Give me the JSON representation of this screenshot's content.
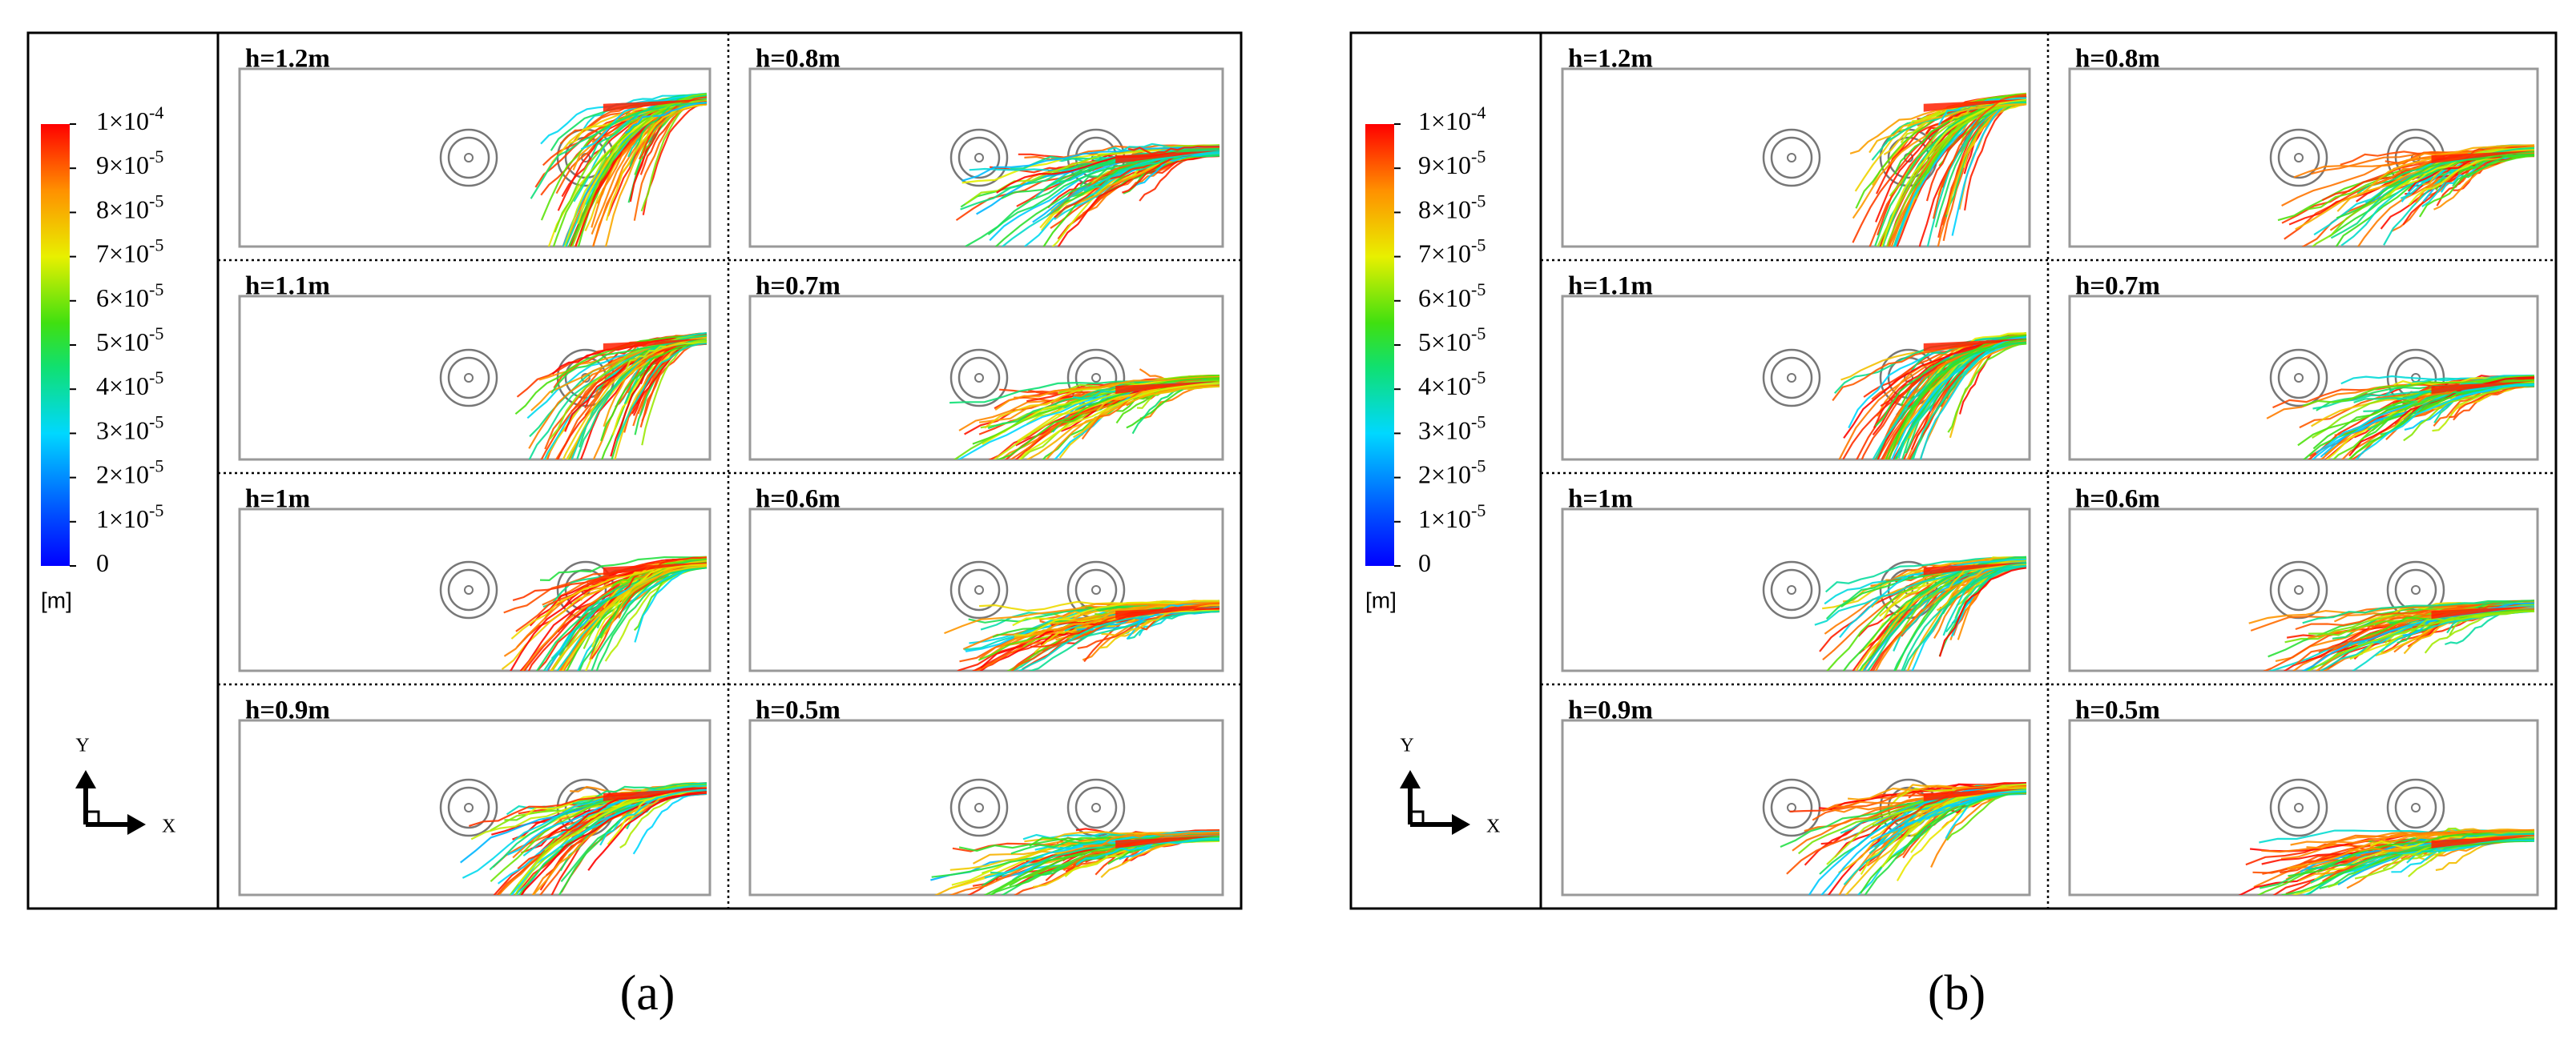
{
  "panels": [
    {
      "caption": "(a)",
      "colorbar": {
        "ticks": [
          {
            "text": "1×10",
            "sup": "-4"
          },
          {
            "text": "9×10",
            "sup": "-5"
          },
          {
            "text": "8×10",
            "sup": "-5"
          },
          {
            "text": "7×10",
            "sup": "-5"
          },
          {
            "text": "6×10",
            "sup": "-5"
          },
          {
            "text": "5×10",
            "sup": "-5"
          },
          {
            "text": "4×10",
            "sup": "-5"
          },
          {
            "text": "3×10",
            "sup": "-5"
          },
          {
            "text": "2×10",
            "sup": "-5"
          },
          {
            "text": "1×10",
            "sup": "-5"
          },
          {
            "text": "0"
          }
        ],
        "unit": "[m]"
      },
      "axes": {
        "y": "Y",
        "x": "X"
      },
      "plots": [
        {
          "label": "h=1.2m"
        },
        {
          "label": "h=1.1m"
        },
        {
          "label": "h=1m"
        },
        {
          "label": "h=0.9m"
        },
        {
          "label": "h=0.8m"
        },
        {
          "label": "h=0.7m"
        },
        {
          "label": "h=0.6m"
        },
        {
          "label": "h=0.5m"
        }
      ]
    },
    {
      "caption": "(b)",
      "colorbar": {
        "ticks": [
          {
            "text": "1×10",
            "sup": "-4"
          },
          {
            "text": "9×10",
            "sup": "-5"
          },
          {
            "text": "8×10",
            "sup": "-5"
          },
          {
            "text": "7×10",
            "sup": "-5"
          },
          {
            "text": "6×10",
            "sup": "-5"
          },
          {
            "text": "5×10",
            "sup": "-5"
          },
          {
            "text": "4×10",
            "sup": "-5"
          },
          {
            "text": "3×10",
            "sup": "-5"
          },
          {
            "text": "2×10",
            "sup": "-5"
          },
          {
            "text": "1×10",
            "sup": "-5"
          },
          {
            "text": "0"
          }
        ],
        "unit": "[m]"
      },
      "axes": {
        "y": "Y",
        "x": "X"
      },
      "plots": [
        {
          "label": "h=1.2m"
        },
        {
          "label": "h=1.1m"
        },
        {
          "label": "h=1m"
        },
        {
          "label": "h=0.9m"
        },
        {
          "label": "h=0.8m"
        },
        {
          "label": "h=0.7m"
        },
        {
          "label": "h=0.6m"
        },
        {
          "label": "h=0.5m"
        }
      ]
    }
  ]
}
